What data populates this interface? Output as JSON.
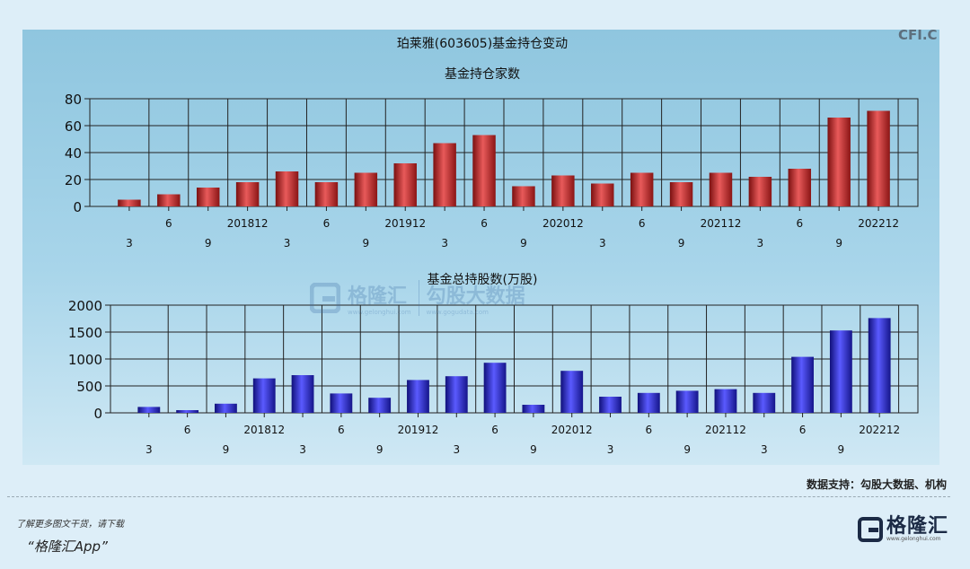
{
  "title": "珀莱雅(603605)基金持仓变动",
  "corner_mark": "CFI.C",
  "source_note": "数据支持：勾股大数据、机构",
  "footer": {
    "line1": "了解更多图文干货，请下载",
    "line2": "“格隆汇App”",
    "logo_name": "格隆汇",
    "logo_url": "www.gelonghui.com"
  },
  "watermark": {
    "left": "格隆汇",
    "left_url": "www.gelonghui.com",
    "right": "勾股大数据",
    "right_url": "www.gogudata.com"
  },
  "colors": {
    "red_series": "#c83232",
    "blue_series": "#2a2ad8",
    "panel_bg": "#a8d5ea"
  },
  "chart_data": [
    {
      "type": "bar",
      "title": "基金持仓家数",
      "categories": [
        "3",
        "6",
        "9",
        "201812",
        "3",
        "6",
        "9",
        "201912",
        "3",
        "6",
        "9",
        "202012",
        "3",
        "6",
        "9",
        "202112",
        "3",
        "6",
        "9",
        "202212"
      ],
      "values": [
        5,
        9,
        14,
        18,
        26,
        18,
        25,
        32,
        47,
        53,
        15,
        23,
        17,
        25,
        18,
        25,
        22,
        28,
        66,
        71
      ],
      "ylim": [
        0,
        80
      ],
      "yticks": [
        0,
        20,
        40,
        60,
        80
      ],
      "grid": true
    },
    {
      "type": "bar",
      "title": "基金总持股数(万股)",
      "categories": [
        "3",
        "6",
        "9",
        "201812",
        "3",
        "6",
        "9",
        "201912",
        "3",
        "6",
        "9",
        "202012",
        "3",
        "6",
        "9",
        "202112",
        "3",
        "6",
        "9",
        "202212"
      ],
      "values": [
        110,
        50,
        170,
        640,
        700,
        360,
        280,
        610,
        680,
        930,
        150,
        780,
        300,
        370,
        410,
        440,
        370,
        1040,
        1530,
        1760
      ],
      "ylim": [
        0,
        2000
      ],
      "yticks": [
        0,
        500,
        1000,
        1500,
        2000
      ],
      "grid": true
    }
  ]
}
